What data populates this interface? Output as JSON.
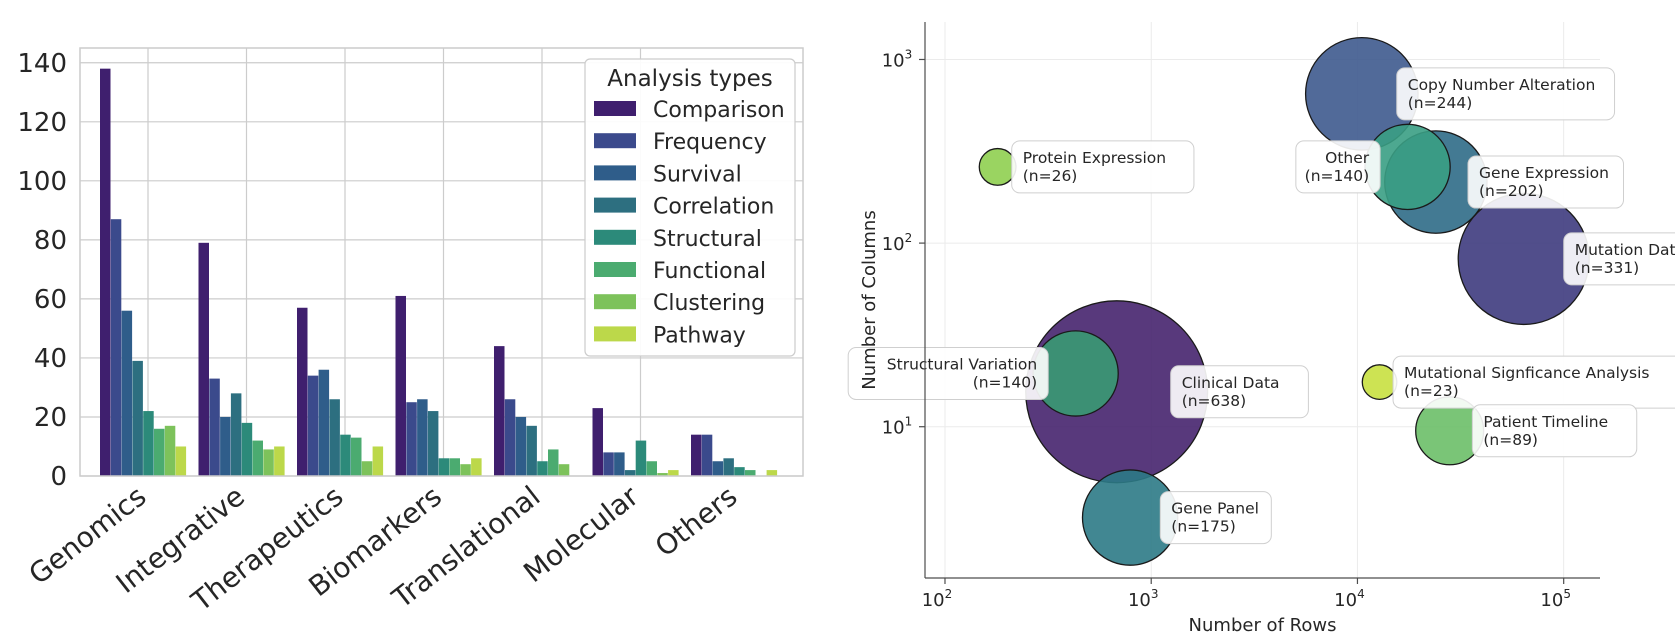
{
  "chart_data": [
    {
      "type": "bar",
      "categories": [
        "Genomics",
        "Integrative",
        "Therapeutics",
        "Biomarkers",
        "Translational",
        "Molecular",
        "Others"
      ],
      "series": [
        {
          "name": "Comparison",
          "color": "#3f1f6e",
          "values": [
            138,
            79,
            57,
            61,
            44,
            23,
            14
          ]
        },
        {
          "name": "Frequency",
          "color": "#3b4a8c",
          "values": [
            87,
            33,
            34,
            25,
            26,
            8,
            14
          ]
        },
        {
          "name": "Survival",
          "color": "#2f5d8a",
          "values": [
            56,
            20,
            36,
            26,
            20,
            8,
            5
          ]
        },
        {
          "name": "Correlation",
          "color": "#2d6f80",
          "values": [
            39,
            28,
            26,
            22,
            17,
            2,
            6
          ]
        },
        {
          "name": "Structural",
          "color": "#2c8a7a",
          "values": [
            22,
            18,
            14,
            6,
            5,
            12,
            3
          ]
        },
        {
          "name": "Functional",
          "color": "#4bab70",
          "values": [
            16,
            12,
            13,
            6,
            9,
            5,
            2
          ]
        },
        {
          "name": "Clustering",
          "color": "#7dc25b",
          "values": [
            17,
            9,
            5,
            4,
            4,
            1,
            0
          ]
        },
        {
          "name": "Pathway",
          "color": "#bcd84a",
          "values": [
            10,
            10,
            10,
            6,
            0,
            2,
            2
          ]
        }
      ],
      "legend_title": "Analysis types",
      "legend_position": "top-right",
      "ylim": [
        0,
        145
      ],
      "yticks": [
        "0",
        "20",
        "40",
        "60",
        "80",
        "100",
        "120",
        "140"
      ],
      "grid": true
    },
    {
      "type": "scatter",
      "xlabel": "Number of Rows",
      "ylabel": "Number of Columns",
      "x_scale": "log",
      "y_scale": "log",
      "xlim": [
        80,
        150000
      ],
      "ylim": [
        1.5,
        1600
      ],
      "xticks": [
        {
          "base": "10",
          "exp": "2"
        },
        {
          "base": "10",
          "exp": "3"
        },
        {
          "base": "10",
          "exp": "4"
        },
        {
          "base": "10",
          "exp": "5"
        }
      ],
      "yticks": [
        {
          "base": "10",
          "exp": "1"
        },
        {
          "base": "10",
          "exp": "2"
        },
        {
          "base": "10",
          "exp": "3"
        }
      ],
      "grid": true,
      "points": [
        {
          "name": "Copy Number Alteration",
          "count": "(n=244)",
          "x": 10500,
          "y": 650,
          "n": 244,
          "color": "#3e5a8e",
          "label_side": "right"
        },
        {
          "name": "Protein Expression",
          "count": "(n=26)",
          "x": 180,
          "y": 260,
          "n": 26,
          "color": "#8fcf50",
          "label_side": "right"
        },
        {
          "name": "Other",
          "count": "(n=140)",
          "x": 17500,
          "y": 260,
          "n": 140,
          "color": "#3a9e84",
          "label_side": "left"
        },
        {
          "name": "Gene Expression",
          "count": "(n=202)",
          "x": 24000,
          "y": 215,
          "n": 202,
          "color": "#2f6b87",
          "label_side": "right"
        },
        {
          "name": "Mutation Data",
          "count": "(n=331)",
          "x": 64000,
          "y": 82,
          "n": 331,
          "color": "#3e3b7e",
          "label_side": "right"
        },
        {
          "name": "Structural Variation",
          "count": "(n=140)",
          "x": 430,
          "y": 19.5,
          "n": 140,
          "color": "#3a9a73",
          "label_side": "left"
        },
        {
          "name": "Clinical Data",
          "count": "(n=638)",
          "x": 680,
          "y": 15.5,
          "n": 638,
          "color": "#46236e",
          "label_side": "right"
        },
        {
          "name": "Mutational Signficance Analysis",
          "count": "(n=23)",
          "x": 12800,
          "y": 17.5,
          "n": 23,
          "color": "#c8e040",
          "label_side": "right"
        },
        {
          "name": "Patient Timeline",
          "count": "(n=89)",
          "x": 28000,
          "y": 9.5,
          "n": 89,
          "color": "#6bbf68",
          "label_side": "right"
        },
        {
          "name": "Gene Panel",
          "count": "(n=175)",
          "x": 790,
          "y": 3.2,
          "n": 175,
          "color": "#2c7a86",
          "label_side": "right"
        }
      ]
    }
  ]
}
